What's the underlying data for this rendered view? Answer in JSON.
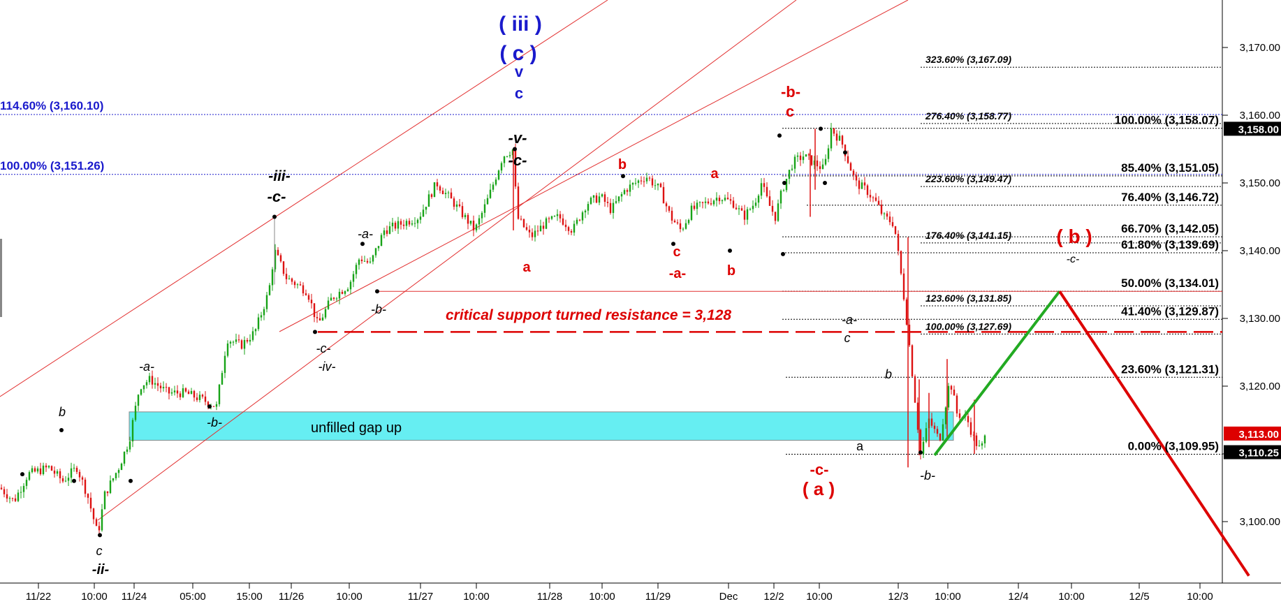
{
  "chart_data": {
    "type": "candlestick",
    "ylim": [
      3089.5,
      3174.5
    ],
    "y_ticks": [
      3100,
      3110,
      3120,
      3130,
      3140,
      3150,
      3160,
      3170
    ],
    "y_tick_labels": [
      "3,100.00",
      "3,110.00",
      "3,120.00",
      "3,130.00",
      "3,140.00",
      "3,150.00",
      "3,160.00",
      "3,170.00"
    ],
    "x_tick_labels": [
      "11/22",
      "10:00",
      "11/24",
      "05:00",
      "15:00",
      "11/26",
      "10:00",
      "11/27",
      "10:00",
      "11/28",
      "10:00",
      "11/29",
      "Dec",
      "12/2",
      "10:00",
      "12/3",
      "10:00",
      "12/4",
      "10:00",
      "12/5",
      "10:00"
    ],
    "price_path": [
      [
        0,
        3105
      ],
      [
        20,
        3103
      ],
      [
        40,
        3107
      ],
      [
        70,
        3108
      ],
      [
        90,
        3106
      ],
      [
        110,
        3108
      ],
      [
        125,
        3104
      ],
      [
        140,
        3098
      ],
      [
        150,
        3104
      ],
      [
        170,
        3108
      ],
      [
        185,
        3112
      ],
      [
        200,
        3120
      ],
      [
        215,
        3121
      ],
      [
        240,
        3119
      ],
      [
        265,
        3119
      ],
      [
        290,
        3118
      ],
      [
        310,
        3117
      ],
      [
        325,
        3127
      ],
      [
        345,
        3126
      ],
      [
        365,
        3128
      ],
      [
        385,
        3134
      ],
      [
        393,
        3140
      ],
      [
        410,
        3136
      ],
      [
        440,
        3134
      ],
      [
        455,
        3129
      ],
      [
        475,
        3133
      ],
      [
        500,
        3135
      ],
      [
        515,
        3139
      ],
      [
        530,
        3138
      ],
      [
        550,
        3143
      ],
      [
        575,
        3144
      ],
      [
        600,
        3145
      ],
      [
        625,
        3150
      ],
      [
        650,
        3147
      ],
      [
        680,
        3143
      ],
      [
        700,
        3148
      ],
      [
        720,
        3154
      ],
      [
        735,
        3155
      ],
      [
        740,
        3145
      ],
      [
        760,
        3142
      ],
      [
        780,
        3144
      ],
      [
        800,
        3145
      ],
      [
        820,
        3143
      ],
      [
        840,
        3147
      ],
      [
        860,
        3148
      ],
      [
        875,
        3146
      ],
      [
        895,
        3149
      ],
      [
        910,
        3150
      ],
      [
        925,
        3151
      ],
      [
        945,
        3149
      ],
      [
        960,
        3145
      ],
      [
        975,
        3143
      ],
      [
        990,
        3146
      ],
      [
        1010,
        3147
      ],
      [
        1030,
        3148
      ],
      [
        1050,
        3147
      ],
      [
        1065,
        3145
      ],
      [
        1080,
        3147
      ],
      [
        1090,
        3150
      ],
      [
        1100,
        3147
      ],
      [
        1110,
        3145
      ],
      [
        1120,
        3149
      ],
      [
        1135,
        3153
      ],
      [
        1150,
        3154
      ],
      [
        1165,
        3153
      ],
      [
        1180,
        3152
      ],
      [
        1190,
        3158
      ],
      [
        1205,
        3156
      ],
      [
        1225,
        3150
      ],
      [
        1240,
        3149
      ],
      [
        1255,
        3147
      ],
      [
        1265,
        3145
      ],
      [
        1280,
        3144
      ],
      [
        1292,
        3135
      ],
      [
        1300,
        3128
      ],
      [
        1308,
        3120
      ],
      [
        1318,
        3110
      ],
      [
        1330,
        3115
      ],
      [
        1345,
        3112
      ],
      [
        1360,
        3121
      ],
      [
        1370,
        3116
      ],
      [
        1385,
        3115
      ],
      [
        1395,
        3112
      ],
      [
        1404,
        3110.5
      ],
      [
        1412,
        3113
      ]
    ],
    "fib_levels_right": [
      {
        "label": "100.00% (3,158.07)",
        "value": 3158.07
      },
      {
        "label": "85.40% (3,151.05)",
        "value": 3151.05
      },
      {
        "label": "76.40% (3,146.72)",
        "value": 3146.72
      },
      {
        "label": "66.70% (3,142.05)",
        "value": 3142.05
      },
      {
        "label": "61.80% (3,139.69)",
        "value": 3139.69
      },
      {
        "label": "50.00% (3,134.01)",
        "value": 3134.01
      },
      {
        "label": "41.40% (3,129.87)",
        "value": 3129.87
      },
      {
        "label": "23.60% (3,121.31)",
        "value": 3121.31
      },
      {
        "label": "0.00% (3,109.95)",
        "value": 3109.95
      }
    ],
    "fib_extensions": [
      {
        "label": "323.60% (3,167.09)",
        "value": 3167.09
      },
      {
        "label": "276.40% (3,158.77)",
        "value": 3158.77
      },
      {
        "label": "223.60% (3,149.47)",
        "value": 3149.47
      },
      {
        "label": "176.40% (3,141.15)",
        "value": 3141.15
      },
      {
        "label": "123.60% (3,131.85)",
        "value": 3131.85
      },
      {
        "label": "100.00% (3,127.69)",
        "value": 3127.69
      }
    ],
    "blue_levels": [
      {
        "label": "114.60% (3,160.10)",
        "value": 3160.1
      },
      {
        "label": "100.00% (3,151.26)",
        "value": 3151.26
      }
    ],
    "price_tags": [
      {
        "label": "3,158.00",
        "value": 3158.0,
        "color": "#000000"
      },
      {
        "label": "3,113.00",
        "value": 3113.0,
        "color": "#dd0000"
      },
      {
        "label": "3,110.25",
        "value": 3110.25,
        "color": "#000000"
      }
    ],
    "critical_text": "critical support  turned resistance = 3,128",
    "critical_level": 3128,
    "support_line_level": 3134,
    "gap_zone": {
      "top": 3116.2,
      "bottom": 3112.0,
      "label": "unfilled gap up"
    },
    "wave_labels_blue": [
      "( iii )",
      "( c )",
      "v",
      "c"
    ],
    "wave_labels_black": [
      "-iii-",
      "-c-",
      "-v-",
      "-c-",
      "-a-",
      "-b-",
      "-c-",
      "-iv-",
      "-a-",
      "-b-",
      "b",
      "c",
      "-ii-",
      "-a-",
      "c",
      "-b-",
      "b",
      "a",
      "-c-"
    ],
    "wave_labels_red": [
      "-b-",
      "c",
      "b",
      "a",
      "a",
      "c",
      "-a-",
      "b",
      "( b )",
      "-c-",
      "( a )"
    ],
    "projection": {
      "green": [
        [
          3109.8
        ],
        [
          3134.0
        ]
      ],
      "red": [
        [
          3134.0
        ],
        [
          3092.0
        ]
      ]
    },
    "colors": {
      "up": "#17a317",
      "down": "#dd1111",
      "blue": "#1a1acc",
      "red": "#dd0000",
      "gap": "#66eef2",
      "green_proj": "#22aa22"
    }
  }
}
